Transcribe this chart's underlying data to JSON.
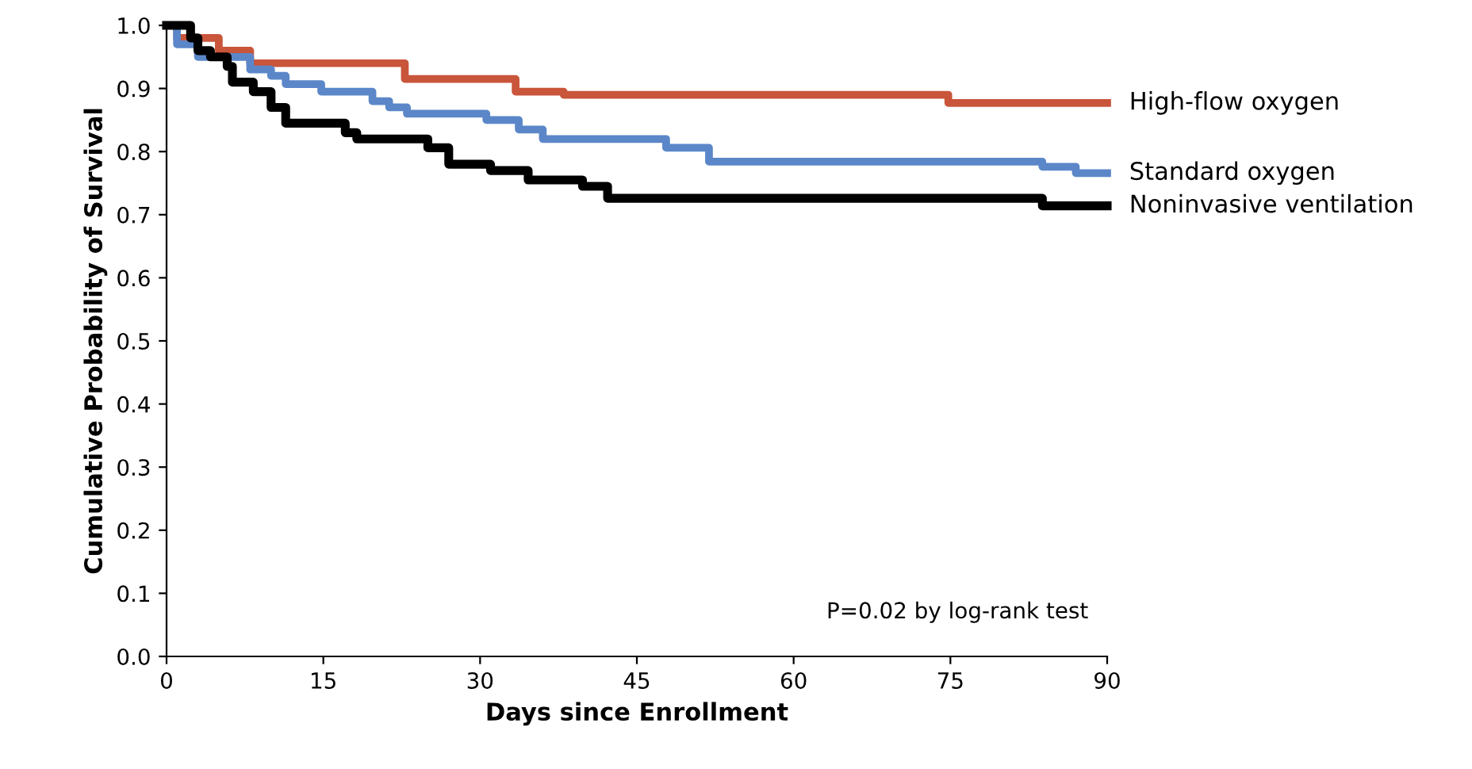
{
  "chart_data": {
    "type": "step",
    "xlabel": "Days since Enrollment",
    "ylabel": "Cumulative Probability of Survival",
    "xlim": [
      0,
      90
    ],
    "ylim": [
      0,
      1.0
    ],
    "xticks": [
      0,
      15,
      30,
      45,
      60,
      75,
      90
    ],
    "yticks": [
      {
        "value": 0,
        "label": "0.0"
      },
      0.1,
      0.2,
      0.3,
      0.4,
      0.5,
      0.6,
      0.7,
      0.8,
      0.9,
      {
        "value": 1,
        "label": "1.0"
      }
    ],
    "grid": false,
    "legend": false,
    "series": [
      {
        "name": "High-flow oxygen",
        "color": "#c9553a",
        "x": [
          0,
          1,
          2,
          5,
          8,
          22.8,
          33.4,
          38,
          74.8,
          90
        ],
        "values": [
          1.0,
          0.98,
          0.98,
          0.96,
          0.94,
          0.915,
          0.895,
          0.89,
          0.877,
          0.877
        ]
      },
      {
        "name": "Standard oxygen",
        "color": "#5b87c9",
        "x": [
          0,
          1,
          3,
          8,
          10,
          11.4,
          14.8,
          19.7,
          21.3,
          23,
          30.6,
          33.7,
          36,
          47.8,
          51.9,
          83.8,
          87,
          90
        ],
        "values": [
          1.0,
          0.97,
          0.95,
          0.93,
          0.92,
          0.907,
          0.895,
          0.88,
          0.87,
          0.86,
          0.85,
          0.835,
          0.82,
          0.806,
          0.784,
          0.776,
          0.766,
          0.766
        ]
      },
      {
        "name": "Noninvasive ventilation",
        "color": "#000000",
        "x": [
          0,
          2.3,
          3,
          4.2,
          5.8,
          6.3,
          8.3,
          10,
          11.4,
          17.1,
          18.2,
          25,
          27,
          31,
          34.6,
          39.8,
          42.2,
          83.8,
          90
        ],
        "values": [
          1.0,
          0.98,
          0.96,
          0.95,
          0.935,
          0.91,
          0.895,
          0.87,
          0.845,
          0.83,
          0.82,
          0.806,
          0.78,
          0.77,
          0.755,
          0.745,
          0.726,
          0.714,
          0.714
        ]
      }
    ],
    "annotations": [
      "P=0.02 by log-rank test"
    ]
  }
}
